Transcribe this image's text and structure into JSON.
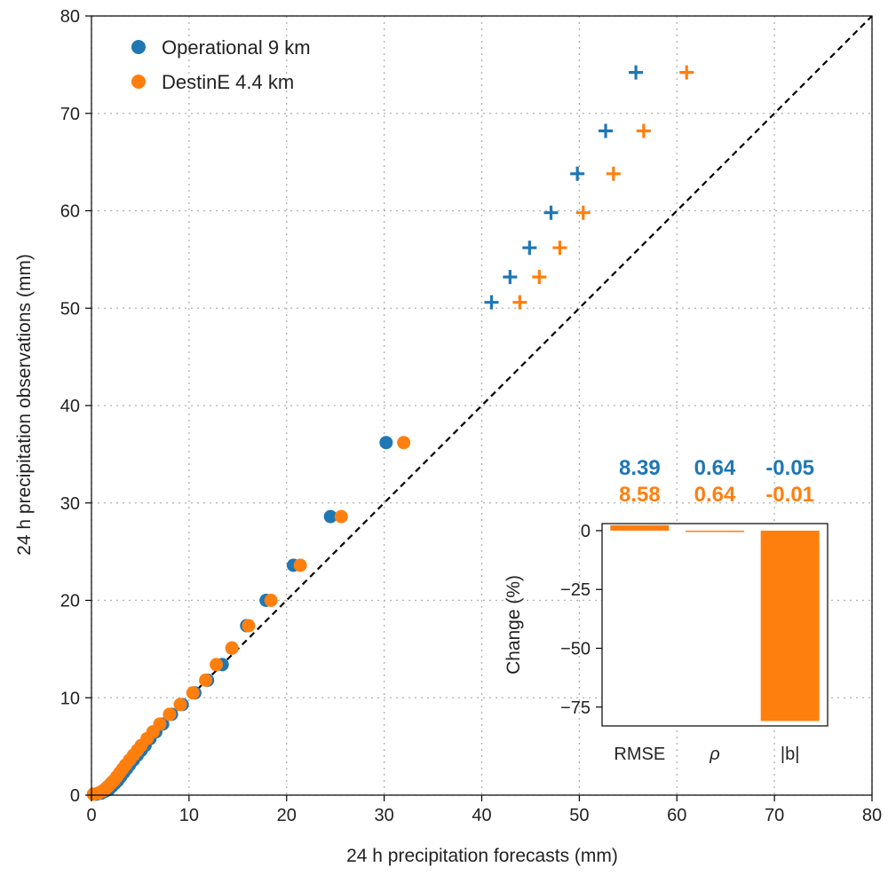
{
  "chart_data": [
    {
      "type": "scatter",
      "title": "",
      "xlabel": "24 h precipitation forecasts (mm)",
      "ylabel": "24 h precipitation observations (mm)",
      "xlim": [
        0,
        80
      ],
      "ylim": [
        0,
        80
      ],
      "xticks": [
        "0",
        "10",
        "20",
        "30",
        "40",
        "50",
        "60",
        "70",
        "80"
      ],
      "yticks": [
        "0",
        "10",
        "20",
        "30",
        "40",
        "50",
        "60",
        "70",
        "80"
      ],
      "grid": true,
      "legend_position": "top-left",
      "reference_line": {
        "style": "dashed",
        "color": "#000000",
        "from": [
          0,
          0
        ],
        "to": [
          80,
          80
        ]
      },
      "series": [
        {
          "name": "Operational 9 km",
          "color": "#1f77b4",
          "marker": "circle",
          "points": [
            [
              0.5,
              0.1
            ],
            [
              1.0,
              0.2
            ],
            [
              1.4,
              0.4
            ],
            [
              1.8,
              0.6
            ],
            [
              2.1,
              0.9
            ],
            [
              2.4,
              1.2
            ],
            [
              2.7,
              1.5
            ],
            [
              3.0,
              1.9
            ],
            [
              3.3,
              2.3
            ],
            [
              3.6,
              2.7
            ],
            [
              3.9,
              3.1
            ],
            [
              4.3,
              3.6
            ],
            [
              4.7,
              4.1
            ],
            [
              5.1,
              4.6
            ],
            [
              5.5,
              5.1
            ],
            [
              6.0,
              5.8
            ],
            [
              6.6,
              6.5
            ],
            [
              7.3,
              7.3
            ],
            [
              8.2,
              8.3
            ],
            [
              9.3,
              9.3
            ],
            [
              10.6,
              10.5
            ],
            [
              11.9,
              11.8
            ],
            [
              13.4,
              13.4
            ],
            [
              14.4,
              15.1
            ],
            [
              15.9,
              17.4
            ],
            [
              17.9,
              20.0
            ],
            [
              20.7,
              23.6
            ],
            [
              24.5,
              28.6
            ],
            [
              30.2,
              36.2
            ]
          ]
        },
        {
          "name": "",
          "color": "#1f77b4",
          "marker": "plus",
          "points": [
            [
              41.0,
              50.6
            ],
            [
              42.9,
              53.2
            ],
            [
              44.9,
              56.2
            ],
            [
              47.1,
              59.8
            ],
            [
              49.8,
              63.8
            ],
            [
              52.7,
              68.2
            ],
            [
              55.8,
              74.2
            ]
          ]
        },
        {
          "name": "DestinE 4.4 km",
          "color": "#ff7f0e",
          "marker": "circle",
          "points": [
            [
              0.2,
              0.1
            ],
            [
              0.7,
              0.2
            ],
            [
              1.1,
              0.4
            ],
            [
              1.4,
              0.6
            ],
            [
              1.7,
              0.9
            ],
            [
              2.0,
              1.2
            ],
            [
              2.3,
              1.5
            ],
            [
              2.6,
              1.9
            ],
            [
              2.9,
              2.3
            ],
            [
              3.2,
              2.7
            ],
            [
              3.5,
              3.1
            ],
            [
              3.9,
              3.6
            ],
            [
              4.3,
              4.1
            ],
            [
              4.7,
              4.6
            ],
            [
              5.1,
              5.1
            ],
            [
              5.7,
              5.8
            ],
            [
              6.3,
              6.5
            ],
            [
              7.0,
              7.3
            ],
            [
              8.0,
              8.3
            ],
            [
              9.1,
              9.3
            ],
            [
              10.4,
              10.5
            ],
            [
              11.7,
              11.8
            ],
            [
              12.8,
              13.4
            ],
            [
              14.4,
              15.1
            ],
            [
              16.1,
              17.4
            ],
            [
              18.4,
              20.0
            ],
            [
              21.4,
              23.6
            ],
            [
              25.6,
              28.6
            ],
            [
              32.0,
              36.2
            ]
          ]
        },
        {
          "name": "",
          "color": "#ff7f0e",
          "marker": "plus",
          "points": [
            [
              43.9,
              50.6
            ],
            [
              45.9,
              53.2
            ],
            [
              48.0,
              56.2
            ],
            [
              50.4,
              59.8
            ],
            [
              53.5,
              63.8
            ],
            [
              56.6,
              68.2
            ],
            [
              61.0,
              74.2
            ]
          ]
        }
      ]
    },
    {
      "type": "bar",
      "title": "",
      "xlabel": "",
      "ylabel": "Change (%)",
      "categories": [
        "RMSE",
        "ρ",
        "|b|"
      ],
      "values": [
        2.3,
        -0.5,
        -80.9
      ],
      "color": "#ff7f0e",
      "ylim": [
        -83,
        3
      ],
      "yticks": [
        0,
        -25,
        -50,
        -75
      ],
      "ytick_labels": [
        "0",
        "−25",
        "−50",
        "−75"
      ],
      "stats_rows": [
        {
          "color": "#1f77b4",
          "values": [
            "8.39",
            "0.64",
            "-0.05"
          ]
        },
        {
          "color": "#ff7f0e",
          "values": [
            "8.58",
            "0.64",
            "-0.01"
          ]
        }
      ]
    }
  ]
}
